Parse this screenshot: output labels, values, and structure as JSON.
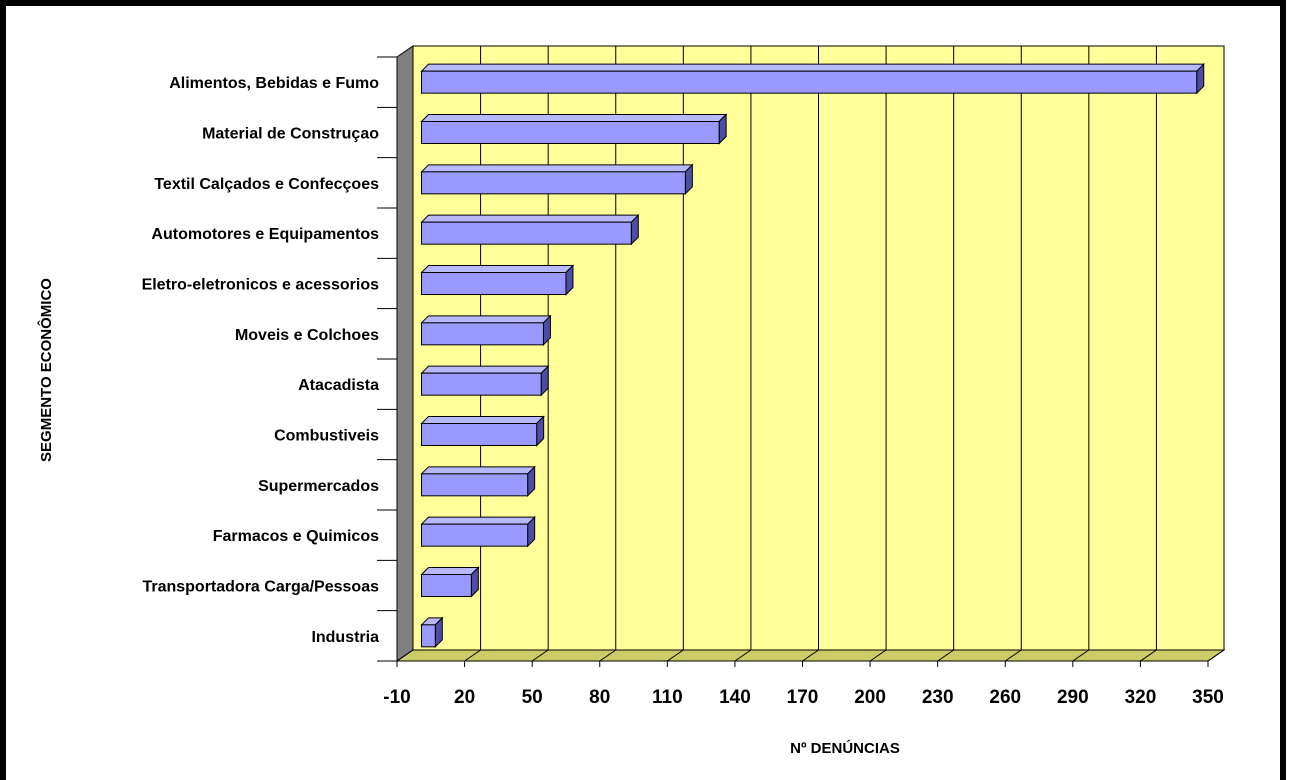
{
  "chart_data": {
    "type": "bar",
    "orientation": "horizontal",
    "style": "3d",
    "categories": [
      "Alimentos, Bebidas e Fumo",
      "Material de Construçao",
      "Textil Calçados e Confecçoes",
      "Automotores e Equipamentos",
      "Eletro-eletronicos e acessorios",
      "Moveis e Colchoes",
      "Atacadista",
      "Combustiveis",
      "Supermercados",
      "Farmacos e Quimicos",
      "Transportadora Carga/Pessoas",
      "Industria"
    ],
    "values": [
      345,
      133,
      118,
      94,
      65,
      55,
      54,
      52,
      48,
      48,
      23,
      7
    ],
    "xlabel": "Nº DENÚNCIAS",
    "ylabel": "SEGMENTO ECONÔMICO",
    "xlim": [
      -10,
      350
    ],
    "xticks": [
      "-10",
      "20",
      "50",
      "80",
      "110",
      "140",
      "170",
      "200",
      "230",
      "260",
      "290",
      "320",
      "350"
    ],
    "grid": true,
    "legend": "none",
    "colors": {
      "bar_face": "#9999ff",
      "bar_top": "#b8b8ff",
      "bar_side": "#4d4da6",
      "plot_background": "#ffff99",
      "floor": "#cccc66",
      "wall": "#808080"
    }
  }
}
